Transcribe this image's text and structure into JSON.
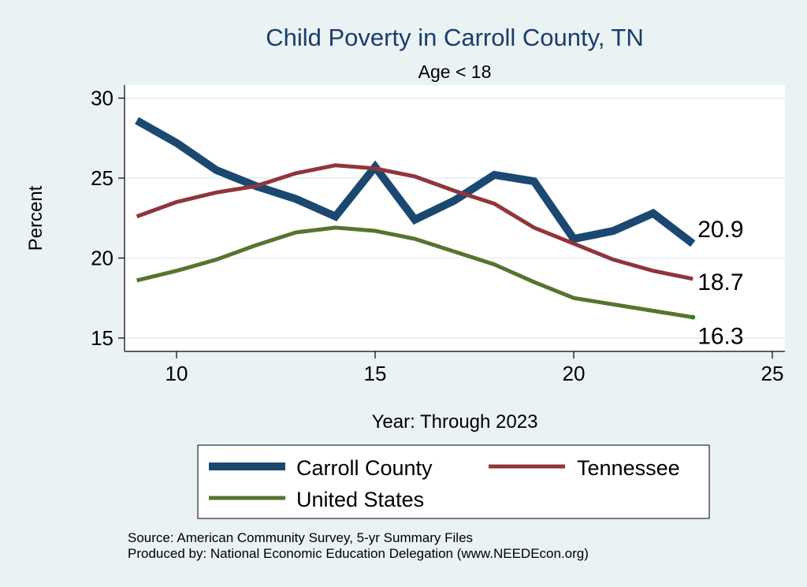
{
  "chart_data": {
    "type": "line",
    "title": "Child Poverty in Carroll County, TN",
    "subtitle": "Age < 18",
    "xlabel": "Year: Through 2023",
    "ylabel": "Percent",
    "xlim": [
      8.7,
      25.2
    ],
    "ylim": [
      14.2,
      31.0
    ],
    "xticks": [
      10,
      15,
      20,
      25
    ],
    "yticks": [
      15,
      20,
      25,
      30
    ],
    "grid": "horizontal",
    "legend_position": "bottom",
    "x": [
      9,
      10,
      11,
      12,
      13,
      14,
      15,
      16,
      17,
      18,
      19,
      20,
      21,
      22,
      23
    ],
    "series": [
      {
        "name": "Carroll County",
        "color": "#1a4870",
        "values": [
          28.6,
          27.2,
          25.5,
          24.5,
          23.7,
          22.6,
          25.7,
          22.4,
          23.6,
          25.2,
          24.8,
          21.2,
          21.7,
          22.8,
          20.9
        ],
        "end_label": "20.9"
      },
      {
        "name": "Tennessee",
        "color": "#90353b",
        "values": [
          22.6,
          23.5,
          24.1,
          24.5,
          25.3,
          25.8,
          25.6,
          25.1,
          24.2,
          23.4,
          21.9,
          20.9,
          19.9,
          19.2,
          18.7
        ],
        "end_label": "18.7"
      },
      {
        "name": "United States",
        "color": "#55752f",
        "values": [
          18.6,
          19.2,
          19.9,
          20.8,
          21.6,
          21.9,
          21.7,
          21.2,
          20.4,
          19.6,
          18.5,
          17.5,
          17.1,
          16.7,
          16.3
        ],
        "end_label": "16.3"
      }
    ],
    "notes": [
      "Source: American Community Survey, 5-yr Summary Files",
      "Produced by: National Economic Education Delegation (www.NEEDEcon.org)"
    ]
  }
}
